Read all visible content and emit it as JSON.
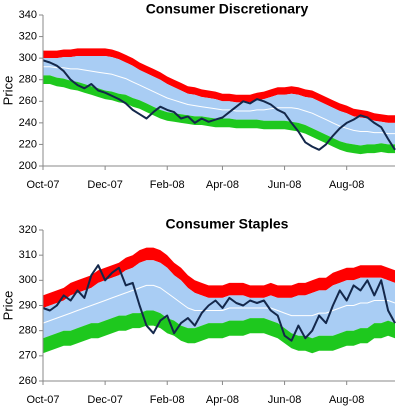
{
  "chart_data": [
    {
      "type": "band",
      "title": "Consumer Discretionary",
      "y_label": "Price",
      "categories": [
        "Oct-07",
        null,
        null,
        null,
        null,
        null,
        null,
        null,
        null,
        "Dec-07",
        null,
        null,
        null,
        null,
        null,
        null,
        null,
        null,
        "Feb-08",
        null,
        null,
        null,
        null,
        null,
        null,
        null,
        "Apr-08",
        null,
        null,
        null,
        null,
        null,
        null,
        null,
        null,
        "Jun-08",
        null,
        null,
        null,
        null,
        null,
        null,
        null,
        null,
        "Aug-08",
        null,
        null,
        null,
        null,
        null,
        null,
        null
      ],
      "ylim": [
        200,
        340
      ],
      "yticks": [
        200,
        220,
        240,
        260,
        280,
        300,
        320,
        340
      ],
      "envelope": [
        {
          "color": "#ff0000",
          "values": [
            307,
            307,
            307,
            308,
            308,
            309,
            309,
            309,
            309,
            309,
            308,
            306,
            303,
            300,
            296,
            293,
            290,
            287,
            283,
            280,
            277,
            274,
            273,
            271,
            270,
            269,
            267,
            267,
            266,
            266,
            266,
            268,
            269,
            271,
            273,
            273,
            274,
            273,
            271,
            270,
            267,
            264,
            261,
            258,
            256,
            253,
            252,
            251,
            249,
            248,
            247,
            247
          ]
        },
        {
          "color": "#a9cdf4",
          "values": [
            300,
            300,
            300,
            301,
            301,
            302,
            302,
            302,
            302,
            302,
            301,
            299,
            296,
            293,
            289,
            286,
            283,
            280,
            276,
            273,
            270,
            267,
            266,
            264,
            263,
            262,
            260,
            260,
            259,
            259,
            259,
            261,
            262,
            264,
            266,
            266,
            267,
            266,
            264,
            263,
            260,
            257,
            254,
            251,
            249,
            246,
            245,
            244,
            242,
            241,
            240,
            240
          ]
        },
        {
          "color": "#1ec81e",
          "values": [
            284,
            284,
            282,
            281,
            279,
            278,
            276,
            274,
            272,
            270,
            269,
            267,
            266,
            263,
            261,
            258,
            255,
            252,
            250,
            249,
            248,
            247,
            246,
            246,
            245,
            244,
            244,
            244,
            243,
            243,
            243,
            243,
            242,
            242,
            242,
            242,
            241,
            240,
            238,
            235,
            232,
            229,
            226,
            223,
            221,
            220,
            219,
            220,
            220,
            221,
            220,
            220
          ]
        },
        {
          "values": [
            276,
            276,
            274,
            273,
            271,
            270,
            268,
            266,
            264,
            262,
            261,
            259,
            258,
            255,
            253,
            250,
            247,
            244,
            242,
            241,
            240,
            239,
            238,
            238,
            237,
            236,
            236,
            236,
            235,
            235,
            235,
            235,
            234,
            234,
            234,
            234,
            233,
            232,
            230,
            227,
            224,
            221,
            218,
            215,
            213,
            212,
            211,
            212,
            212,
            213,
            212,
            212
          ]
        }
      ],
      "lines": [
        {
          "color": "#ffffff",
          "values": [
            292,
            292,
            291,
            291,
            290,
            290,
            289,
            288,
            287,
            286,
            285,
            283,
            281,
            278,
            275,
            272,
            269,
            266,
            263,
            261,
            259,
            257,
            256,
            255,
            254,
            253,
            252,
            252,
            251,
            251,
            251,
            252,
            252,
            253,
            254,
            254,
            254,
            253,
            251,
            249,
            246,
            243,
            240,
            237,
            235,
            233,
            232,
            232,
            231,
            231,
            230,
            230
          ]
        },
        {
          "color": "#14284b",
          "values": [
            298,
            296,
            293,
            288,
            280,
            275,
            272,
            276,
            270,
            268,
            265,
            262,
            258,
            252,
            248,
            244,
            250,
            255,
            252,
            250,
            244,
            246,
            240,
            244,
            241,
            243,
            245,
            250,
            255,
            260,
            258,
            262,
            260,
            257,
            252,
            249,
            240,
            232,
            222,
            218,
            215,
            220,
            228,
            235,
            240,
            243,
            247,
            245,
            240,
            236,
            225,
            215
          ]
        }
      ]
    },
    {
      "type": "band",
      "title": "Consumer Staples",
      "y_label": "Price",
      "categories": [
        "Oct-07",
        null,
        null,
        null,
        null,
        null,
        null,
        null,
        null,
        "Dec-07",
        null,
        null,
        null,
        null,
        null,
        null,
        null,
        null,
        "Feb-08",
        null,
        null,
        null,
        null,
        null,
        null,
        null,
        "Apr-08",
        null,
        null,
        null,
        null,
        null,
        null,
        null,
        null,
        "Jun-08",
        null,
        null,
        null,
        null,
        null,
        null,
        null,
        null,
        "Aug-08",
        null,
        null,
        null,
        null,
        null,
        null,
        null
      ],
      "ylim": [
        260,
        320
      ],
      "yticks": [
        260,
        270,
        280,
        290,
        300,
        310,
        320
      ],
      "envelope": [
        {
          "color": "#ff0000",
          "values": [
            294,
            295,
            296,
            297,
            299,
            300,
            301,
            302,
            304,
            305,
            306,
            307,
            309,
            310,
            312,
            313,
            313,
            312,
            310,
            307,
            305,
            302,
            300,
            299,
            298,
            298,
            298,
            299,
            299,
            299,
            298,
            298,
            298,
            299,
            298,
            298,
            298,
            299,
            299,
            300,
            301,
            301,
            303,
            304,
            305,
            305,
            306,
            306,
            306,
            306,
            305,
            304
          ]
        },
        {
          "color": "#a9cdf4",
          "values": [
            289,
            290,
            291,
            292,
            294,
            295,
            296,
            297,
            299,
            300,
            301,
            302,
            304,
            305,
            307,
            308,
            308,
            307,
            305,
            302,
            300,
            297,
            295,
            294,
            293,
            293,
            293,
            294,
            294,
            294,
            293,
            293,
            293,
            294,
            293,
            293,
            293,
            294,
            294,
            295,
            296,
            296,
            298,
            299,
            300,
            300,
            301,
            301,
            301,
            301,
            300,
            299
          ]
        },
        {
          "color": "#1ec81e",
          "values": [
            277,
            278,
            279,
            280,
            280,
            281,
            282,
            283,
            283,
            284,
            285,
            286,
            286,
            287,
            287,
            288,
            288,
            287,
            285,
            284,
            282,
            281,
            281,
            282,
            283,
            283,
            283,
            284,
            284,
            284,
            285,
            285,
            285,
            284,
            283,
            281,
            279,
            278,
            278,
            277,
            278,
            278,
            278,
            279,
            280,
            280,
            281,
            281,
            283,
            283,
            284,
            283
          ]
        },
        {
          "values": [
            271,
            272,
            273,
            274,
            274,
            275,
            276,
            277,
            277,
            278,
            279,
            280,
            280,
            281,
            281,
            282,
            282,
            281,
            279,
            278,
            276,
            275,
            275,
            276,
            277,
            277,
            277,
            278,
            278,
            278,
            279,
            279,
            279,
            278,
            277,
            275,
            273,
            272,
            272,
            271,
            272,
            272,
            272,
            273,
            274,
            274,
            275,
            275,
            277,
            277,
            278,
            277
          ]
        }
      ],
      "lines": [
        {
          "color": "#ffffff",
          "values": [
            283,
            284,
            285,
            286,
            287,
            288,
            289,
            290,
            291,
            292,
            293,
            294,
            295,
            296,
            297,
            298,
            298,
            297,
            295,
            293,
            291,
            289,
            288,
            288,
            288,
            288,
            288,
            289,
            289,
            289,
            289,
            289,
            289,
            289,
            288,
            287,
            286,
            286,
            286,
            286,
            287,
            287,
            288,
            289,
            290,
            290,
            291,
            291,
            292,
            292,
            292,
            291
          ]
        },
        {
          "color": "#14284b",
          "values": [
            289,
            288,
            290,
            294,
            292,
            296,
            293,
            302,
            306,
            300,
            303,
            305,
            298,
            299,
            290,
            282,
            279,
            284,
            286,
            279,
            283,
            285,
            282,
            287,
            290,
            292,
            289,
            293,
            291,
            290,
            292,
            291,
            292,
            288,
            286,
            278,
            276,
            282,
            277,
            280,
            286,
            283,
            290,
            296,
            292,
            298,
            296,
            300,
            294,
            300,
            288,
            283
          ]
        }
      ]
    }
  ]
}
